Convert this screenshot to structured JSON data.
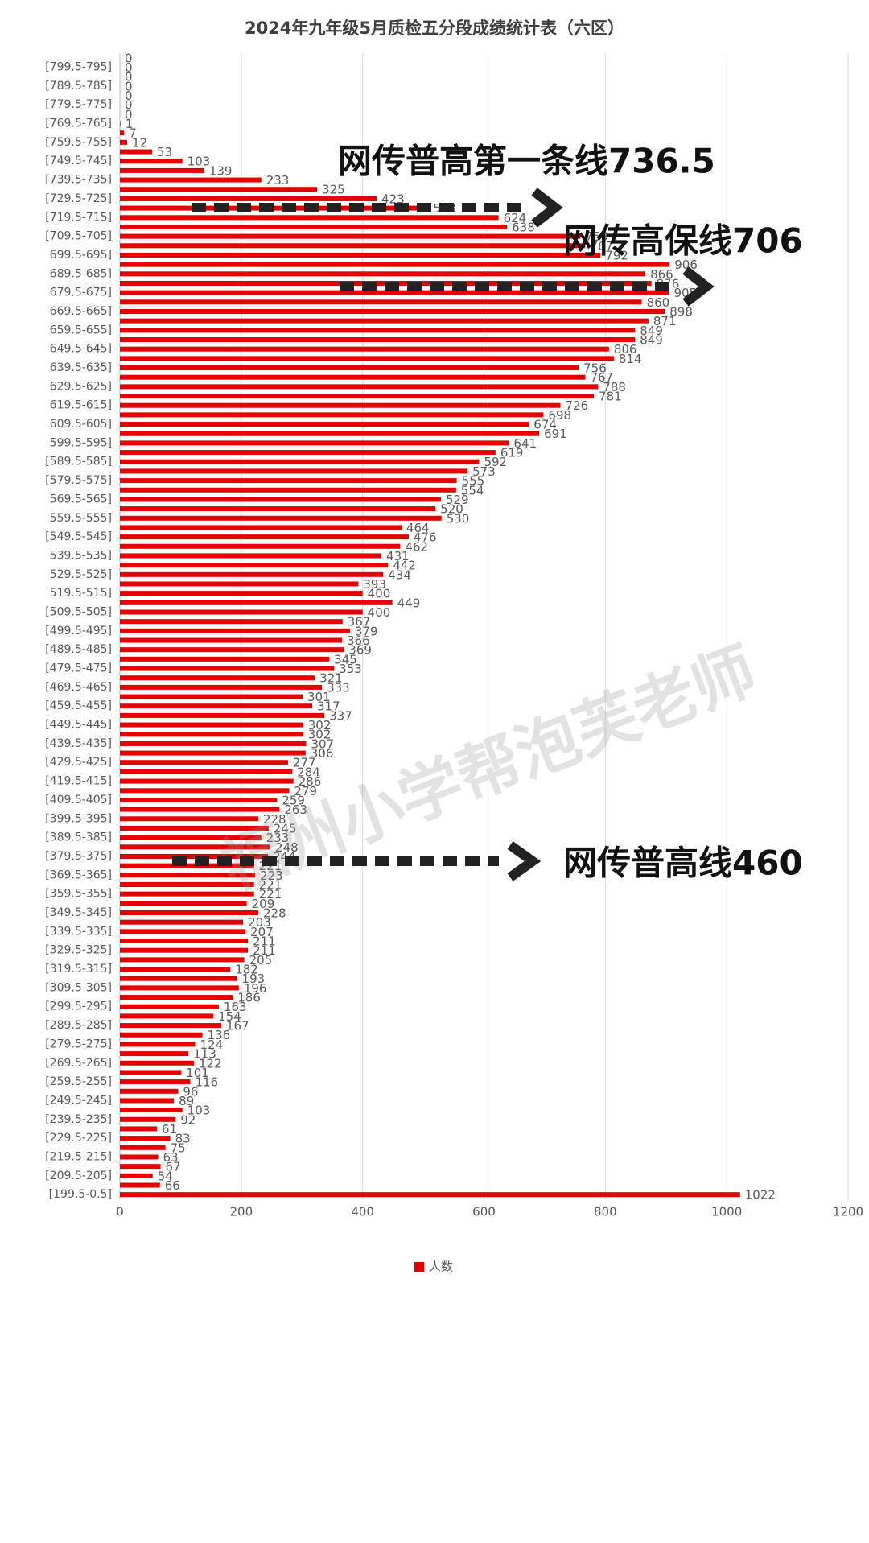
{
  "chart_data": {
    "type": "bar",
    "orientation": "horizontal",
    "title": "2024年九年级5月质检五分段成绩统计表（六区）",
    "categories": [
      null,
      "[799.5-795]",
      null,
      "[789.5-785]",
      null,
      "[779.5-775]",
      null,
      "[769.5-765]",
      null,
      "[759.5-755]",
      null,
      "[749.5-745]",
      null,
      "[739.5-735]",
      null,
      "[729.5-725]",
      null,
      "[719.5-715]",
      null,
      "[709.5-705]",
      null,
      "699.5-695]",
      null,
      "689.5-685]",
      null,
      "679.5-675]",
      null,
      "669.5-665]",
      null,
      "659.5-655]",
      null,
      "649.5-645]",
      null,
      "639.5-635]",
      null,
      "629.5-625]",
      null,
      "619.5-615]",
      null,
      "609.5-605]",
      null,
      "599.5-595]",
      null,
      "[589.5-585]",
      null,
      "[579.5-575]",
      null,
      "569.5-565]",
      null,
      "559.5-555]",
      null,
      "[549.5-545]",
      null,
      "539.5-535]",
      null,
      "529.5-525]",
      null,
      "519.5-515]",
      null,
      "[509.5-505]",
      null,
      "[499.5-495]",
      null,
      "[489.5-485]",
      null,
      "[479.5-475]",
      null,
      "[469.5-465]",
      null,
      "[459.5-455]",
      null,
      "[449.5-445]",
      null,
      "[439.5-435]",
      null,
      "[429.5-425]",
      null,
      "[419.5-415]",
      null,
      "[409.5-405]",
      null,
      "[399.5-395]",
      null,
      "[389.5-385]",
      null,
      "[379.5-375]",
      null,
      "[369.5-365]",
      null,
      "[359.5-355]",
      null,
      "[349.5-345]",
      null,
      "[339.5-335]",
      null,
      "[329.5-325]",
      null,
      "[319.5-315]",
      null,
      "[309.5-305]",
      null,
      "[299.5-295]",
      null,
      "[289.5-285]",
      null,
      "[279.5-275]",
      null,
      "[269.5-265]",
      null,
      "[259.5-255]",
      null,
      "[249.5-245]",
      null,
      "[239.5-235]",
      null,
      "[229.5-225]",
      null,
      "[219.5-215]",
      null,
      "[209.5-205]",
      null,
      "[199.5-0.5]"
    ],
    "series": [
      {
        "name": "人数",
        "color": "#e60000",
        "values": [
          0,
          0,
          0,
          0,
          0,
          0,
          0,
          1,
          7,
          12,
          53,
          103,
          139,
          233,
          325,
          423,
          508,
          624,
          638,
          759,
          767,
          792,
          906,
          866,
          876,
          905,
          860,
          898,
          871,
          849,
          849,
          806,
          814,
          756,
          767,
          788,
          781,
          726,
          698,
          674,
          691,
          641,
          619,
          592,
          573,
          555,
          554,
          529,
          520,
          530,
          464,
          476,
          462,
          431,
          442,
          434,
          393,
          400,
          449,
          400,
          367,
          379,
          366,
          369,
          345,
          353,
          321,
          333,
          301,
          317,
          337,
          302,
          302,
          307,
          306,
          277,
          284,
          286,
          279,
          259,
          263,
          228,
          245,
          233,
          248,
          244,
          221,
          223,
          221,
          221,
          209,
          228,
          203,
          207,
          211,
          211,
          205,
          182,
          193,
          196,
          186,
          163,
          154,
          167,
          136,
          124,
          113,
          122,
          101,
          116,
          96,
          89,
          103,
          92,
          61,
          83,
          75,
          63,
          67,
          54,
          66,
          1022
        ]
      }
    ],
    "xlim": [
      0,
      1200
    ],
    "xticks": [
      0,
      200,
      400,
      600,
      800,
      1000,
      1200
    ],
    "grid": true,
    "legend": "bottom",
    "annotations": [
      "网传普高第一条线736.5",
      "网传高保线706",
      "网传普高线460"
    ],
    "watermark": "福州小学帮泡芙老师"
  }
}
